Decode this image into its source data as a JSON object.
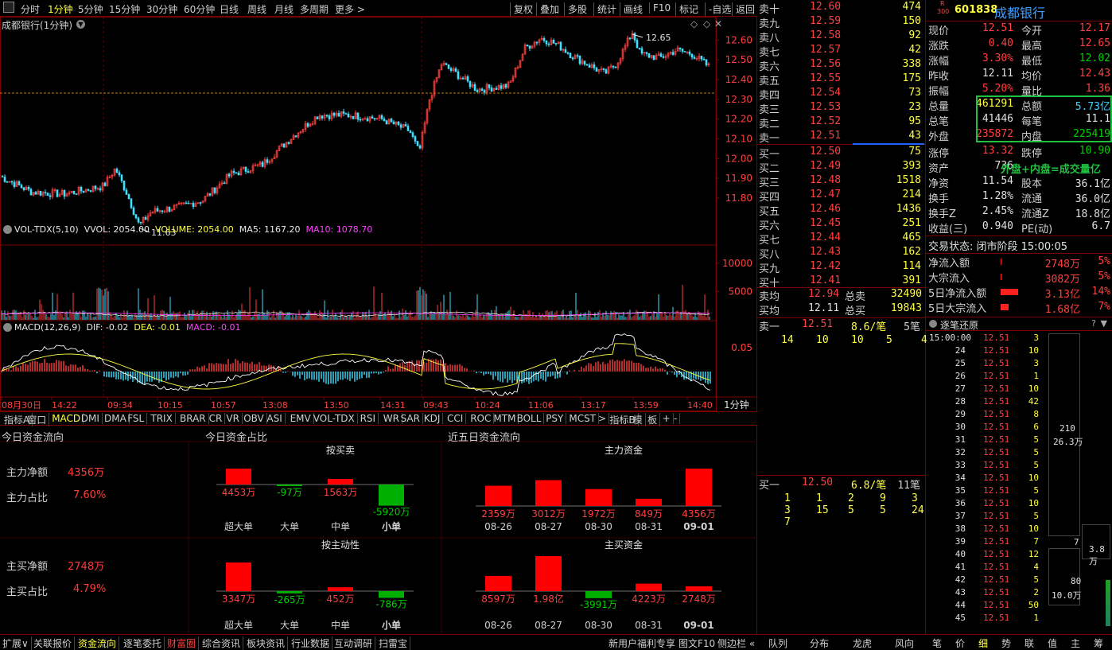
{
  "toolbar": {
    "periods": [
      "分时",
      "1分钟",
      "5分钟",
      "15分钟",
      "30分钟",
      "60分钟",
      "日线",
      "周线",
      "月线",
      "多周期",
      "更多 >"
    ],
    "selected": "1分钟",
    "actions": [
      "复权",
      "叠加",
      "多股",
      "统计",
      "画线",
      "F10",
      "标记",
      "-自选",
      "返回"
    ]
  },
  "chart": {
    "title": "成都银行(1分钟)",
    "high_label": "12.65",
    "low_label": "11.63",
    "price_axis": [
      "12.60",
      "12.50",
      "12.40",
      "12.30",
      "12.20",
      "12.10",
      "12.00",
      "11.90",
      "11.80"
    ],
    "vol_title": "VOL-TDX(5,10)",
    "vol_vals": "VVOL: 2054.00",
    "vol_volume": "VOLUME: 2054.00",
    "vol_ma5": "MA5: 1167.20",
    "vol_ma10": "MA10: 1078.70",
    "vol_axis": [
      "10000",
      "5000"
    ],
    "macd_title": "MACD(12,26,9)",
    "macd_dif": "DIF: -0.02",
    "macd_dea": "DEA: -0.01",
    "macd_val": "MACD: -0.01",
    "macd_axis": "0.05",
    "time_axis": [
      "08月30日",
      "14:22",
      "09:34",
      "10:15",
      "10:57",
      "13:08",
      "13:50",
      "14:31",
      "09:43",
      "10:24",
      "11:06",
      "13:17",
      "13:59",
      "14:40"
    ],
    "period_box": "1分钟"
  },
  "indicator_tabs": [
    "指标A",
    "窗口",
    "MACD",
    "DMI",
    "DMA",
    "FSL",
    "TRIX",
    "BRAR",
    "CR",
    "VR",
    "OBV",
    "ASI",
    "EMV",
    "VOL-TDX",
    "RSI",
    "WR",
    "SAR",
    "KDJ",
    "CCI",
    "ROC",
    "MTM",
    "BOLL",
    "PSY",
    "MCST",
    ">",
    "指标B",
    "模",
    "板",
    "+",
    "-"
  ],
  "fundflow": {
    "today_title": "今日资金流向",
    "share_title": "今日资金占比",
    "five_title": "近五日资金流向",
    "main_net_label": "主力净额",
    "main_net": "4356万",
    "main_ratio_label": "主力占比",
    "main_ratio": "7.60%",
    "buy_net_label": "主买净额",
    "buy_net": "2748万",
    "buy_ratio_label": "主买占比",
    "buy_ratio": "4.79%",
    "by_trade_title": "按买卖",
    "by_active_title": "按主动性",
    "cats": [
      "超大单",
      "大单",
      "中单",
      "小单"
    ],
    "by_trade": [
      {
        "v": 4453,
        "t": "4453万"
      },
      {
        "v": -97,
        "t": "-97万"
      },
      {
        "v": 1563,
        "t": "1563万"
      },
      {
        "v": -5920,
        "t": "-5920万"
      }
    ],
    "by_active": [
      {
        "v": 3347,
        "t": "3347万"
      },
      {
        "v": -265,
        "t": "-265万"
      },
      {
        "v": 452,
        "t": "452万"
      },
      {
        "v": -786,
        "t": "-786万"
      }
    ],
    "main_title": "主力资金",
    "mainbuy_title": "主买资金",
    "dates": [
      "08-26",
      "08-27",
      "08-30",
      "08-31",
      "09-01"
    ],
    "main_5": [
      {
        "v": 2359,
        "t": "2359万"
      },
      {
        "v": 3012,
        "t": "3012万"
      },
      {
        "v": 1972,
        "t": "1972万"
      },
      {
        "v": 849,
        "t": "849万"
      },
      {
        "v": 4356,
        "t": "4356万"
      }
    ],
    "buy_5": [
      {
        "v": 8597,
        "t": "8597万"
      },
      {
        "v": 19800,
        "t": "1.98亿"
      },
      {
        "v": -3991,
        "t": "-3991万"
      },
      {
        "v": 4223,
        "t": "4223万"
      },
      {
        "v": 2748,
        "t": "2748万"
      }
    ]
  },
  "bottom": {
    "tabs": [
      "扩展∨",
      "关联报价",
      "资金流向",
      "逐笔委托",
      "财富圈",
      "综合资讯",
      "板块资讯",
      "行业数据",
      "互动调研",
      "扫雷宝"
    ],
    "right": [
      "新用户福利专享",
      "图文F10",
      "侧边栏 «"
    ],
    "ob_tabs": [
      "队列",
      "分布",
      "龙虎",
      "风向"
    ],
    "q_tabs": [
      "笔",
      "价",
      "细",
      "势",
      "联",
      "值",
      "主",
      "筹"
    ]
  },
  "orderbook": {
    "asks": [
      {
        "l": "卖十",
        "p": "12.60",
        "v": "474"
      },
      {
        "l": "卖九",
        "p": "12.59",
        "v": "150"
      },
      {
        "l": "卖八",
        "p": "12.58",
        "v": "92"
      },
      {
        "l": "卖七",
        "p": "12.57",
        "v": "42"
      },
      {
        "l": "卖六",
        "p": "12.56",
        "v": "338"
      },
      {
        "l": "卖五",
        "p": "12.55",
        "v": "175"
      },
      {
        "l": "卖四",
        "p": "12.54",
        "v": "73"
      },
      {
        "l": "卖三",
        "p": "12.53",
        "v": "23"
      },
      {
        "l": "卖二",
        "p": "12.52",
        "v": "95"
      },
      {
        "l": "卖一",
        "p": "12.51",
        "v": "43"
      }
    ],
    "bids": [
      {
        "l": "买一",
        "p": "12.50",
        "v": "75"
      },
      {
        "l": "买二",
        "p": "12.49",
        "v": "393"
      },
      {
        "l": "买三",
        "p": "12.48",
        "v": "1518"
      },
      {
        "l": "买四",
        "p": "12.47",
        "v": "214"
      },
      {
        "l": "买五",
        "p": "12.46",
        "v": "1436"
      },
      {
        "l": "买六",
        "p": "12.45",
        "v": "251"
      },
      {
        "l": "买七",
        "p": "12.44",
        "v": "465"
      },
      {
        "l": "买八",
        "p": "12.43",
        "v": "162"
      },
      {
        "l": "买九",
        "p": "12.42",
        "v": "114"
      },
      {
        "l": "买十",
        "p": "12.41",
        "v": "391"
      }
    ],
    "avg_sell_l": "卖均",
    "avg_sell": "12.94",
    "total_sell_l": "总卖",
    "total_sell": "32490",
    "avg_buy_l": "买均",
    "avg_buy": "12.11",
    "total_buy_l": "总买",
    "total_buy": "19843",
    "q1_label": "卖一",
    "q1_price": "12.51",
    "q1_avg": "8.6/笔",
    "q1_cnt": "5笔",
    "q1_items": [
      "14",
      "10",
      "10",
      "5",
      "4"
    ],
    "q2_label": "买一",
    "q2_price": "12.50",
    "q2_avg": "6.8/笔",
    "q2_cnt": "11笔",
    "q2_items": [
      "1",
      "1",
      "2",
      "9",
      "3",
      "3",
      "15",
      "5",
      "5",
      "24",
      "7"
    ]
  },
  "quote": {
    "code": "601838",
    "name": "成都银行",
    "badge_top": "R",
    "badge_bot": "300",
    "rows": [
      [
        "现价",
        "12.51",
        "今开",
        "12.17"
      ],
      [
        "涨跌",
        "0.40",
        "最高",
        "12.65"
      ],
      [
        "涨幅",
        "3.30%",
        "最低",
        "12.02"
      ],
      [
        "昨收",
        "12.11",
        "均价",
        "12.43"
      ],
      [
        "振幅",
        "5.20%",
        "量比",
        "1.36"
      ],
      [
        "总量",
        "461291",
        "总额",
        "5.73亿"
      ],
      [
        "总笔",
        "41446",
        "每笔",
        "11.1"
      ],
      [
        "外盘",
        "235872",
        "内盘",
        "225419"
      ],
      [
        "涨停",
        "13.32",
        "跌停",
        "10.90"
      ],
      [
        "资产",
        "736",
        "",
        ""
      ],
      [
        "净资",
        "11.54",
        "股本",
        "36.1亿"
      ],
      [
        "换手",
        "1.28%",
        "流通",
        "36.0亿"
      ],
      [
        "换手Z",
        "2.45%",
        "流通Z",
        "18.8亿"
      ],
      [
        "收益(三)",
        "0.940",
        "PE(动)",
        "6.7"
      ]
    ],
    "annot": "外盘+内盘=成交量亿",
    "status": "交易状态: 闭市阶段 15:00:05",
    "flow": [
      [
        "净流入额",
        "2748万",
        "5%"
      ],
      [
        "大宗流入",
        "3082万",
        "5%"
      ],
      [
        "5日净流入额",
        "3.13亿",
        "14%"
      ],
      [
        "5日大宗流入",
        "1.68亿",
        "7%"
      ]
    ]
  },
  "ticks": {
    "title": "逐笔还原",
    "first_time": "15:00:00",
    "rows": [
      [
        "15:00:00",
        "12.51",
        "3"
      ],
      [
        "24",
        "12.51",
        "10"
      ],
      [
        "25",
        "12.51",
        "3"
      ],
      [
        "26",
        "12.51",
        "1"
      ],
      [
        "27",
        "12.51",
        "10"
      ],
      [
        "28",
        "12.51",
        "42"
      ],
      [
        "29",
        "12.51",
        "8"
      ],
      [
        "30",
        "12.51",
        "6"
      ],
      [
        "31",
        "12.51",
        "5"
      ],
      [
        "32",
        "12.51",
        "5"
      ],
      [
        "33",
        "12.51",
        "5"
      ],
      [
        "34",
        "12.51",
        "10"
      ],
      [
        "35",
        "12.51",
        "5"
      ],
      [
        "36",
        "12.51",
        "10"
      ],
      [
        "37",
        "12.51",
        "5"
      ],
      [
        "38",
        "12.51",
        "10"
      ],
      [
        "39",
        "12.51",
        "7"
      ],
      [
        "40",
        "12.51",
        "12"
      ],
      [
        "41",
        "12.51",
        "4"
      ],
      [
        "42",
        "12.51",
        "5"
      ],
      [
        "43",
        "12.51",
        "2"
      ],
      [
        "44",
        "12.51",
        "50"
      ],
      [
        "45",
        "12.51",
        "1"
      ]
    ],
    "box1_a": "210",
    "box1_b": "26.3万",
    "box2_a": "7",
    "box3_a": "3.8万",
    "box4_a": "80",
    "box4_b": "10.0万"
  }
}
